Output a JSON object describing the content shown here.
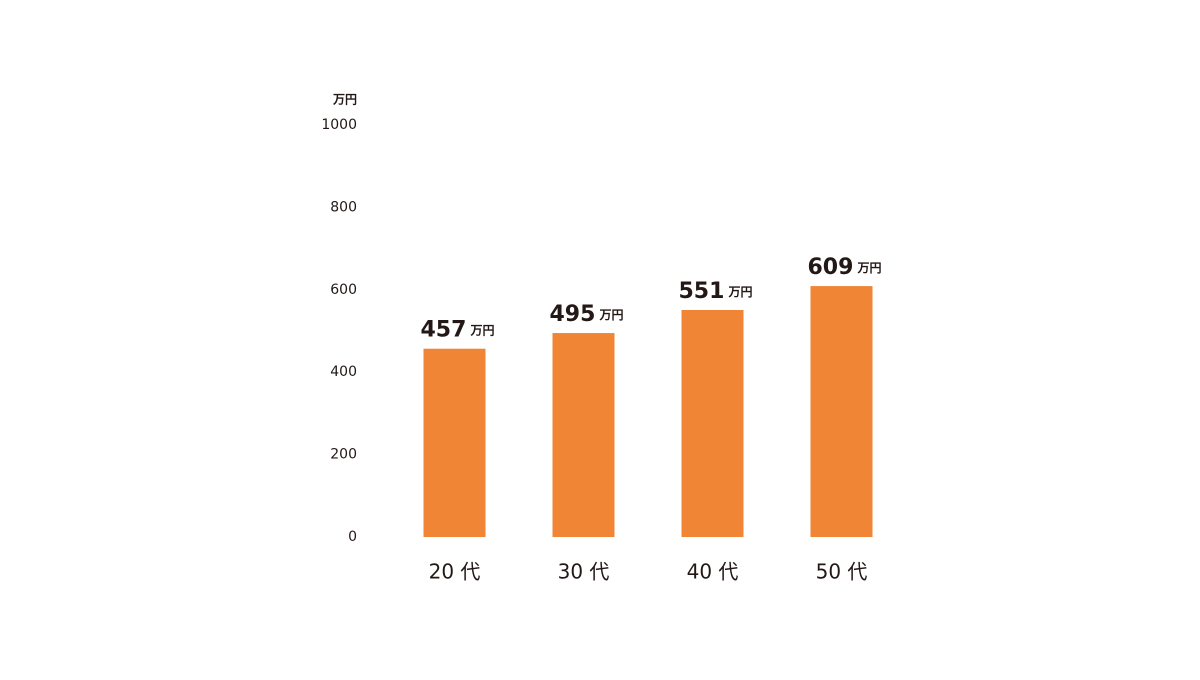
{
  "chart_data": {
    "type": "bar",
    "y_unit": "万円",
    "value_unit": "万円",
    "categories": [
      "20 代",
      "30 代",
      "40 代",
      "50 代"
    ],
    "values": [
      457,
      495,
      551,
      609
    ],
    "color": "#f08536",
    "ylim": [
      0,
      1000
    ],
    "yticks": [
      0,
      200,
      400,
      600,
      800,
      1000
    ],
    "grid": false
  }
}
